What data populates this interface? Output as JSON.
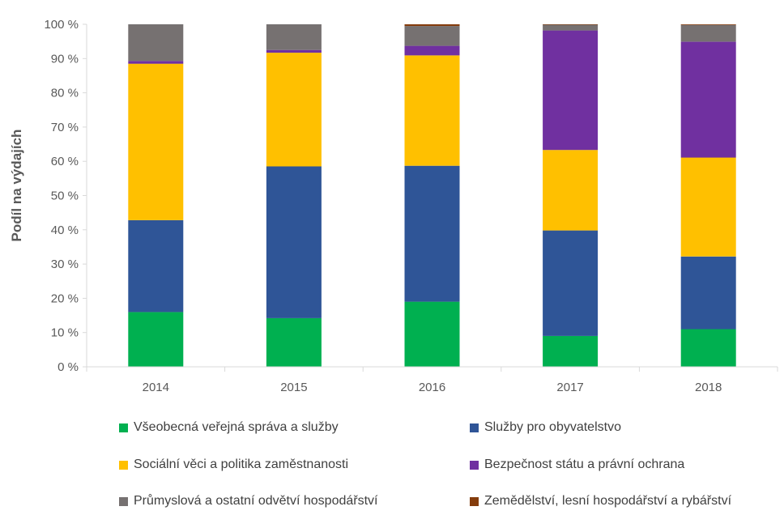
{
  "chart_data": {
    "type": "bar",
    "stacked": true,
    "title": "",
    "xlabel": "",
    "ylabel": "Podíl na výdajích",
    "ylim": [
      0,
      100
    ],
    "yticks": [
      "0 %",
      "10 %",
      "20 %",
      "30 %",
      "40 %",
      "50 %",
      "60 %",
      "70 %",
      "80 %",
      "90 %",
      "100 %"
    ],
    "categories": [
      "2014",
      "2015",
      "2016",
      "2017",
      "2018"
    ],
    "grid": false,
    "legend_position": "bottom",
    "series": [
      {
        "name": "Všeobecná veřejná správa a služby",
        "color": "#00B050",
        "values": [
          16.0,
          14.2,
          19.0,
          9.0,
          11.0
        ]
      },
      {
        "name": "Služby pro obyvatelstvo",
        "color": "#2F5597",
        "values": [
          26.8,
          44.3,
          39.7,
          30.8,
          21.2
        ]
      },
      {
        "name": "Sociální věci a politika zaměstnanosti",
        "color": "#FFC000",
        "values": [
          45.7,
          33.2,
          32.2,
          23.5,
          28.9
        ]
      },
      {
        "name": "Bezpečnost státu a právní ochrana",
        "color": "#7030A0",
        "values": [
          0.8,
          0.8,
          2.8,
          34.9,
          33.8
        ]
      },
      {
        "name": "Průmyslová a ostatní odvětví hospodářství",
        "color": "#767171",
        "values": [
          10.7,
          7.5,
          5.8,
          1.7,
          4.9
        ]
      },
      {
        "name": "Zemědělství, lesní hospodářství a rybářství",
        "color": "#843C0C",
        "values": [
          0.0,
          0.0,
          0.5,
          0.1,
          0.2
        ]
      }
    ]
  }
}
